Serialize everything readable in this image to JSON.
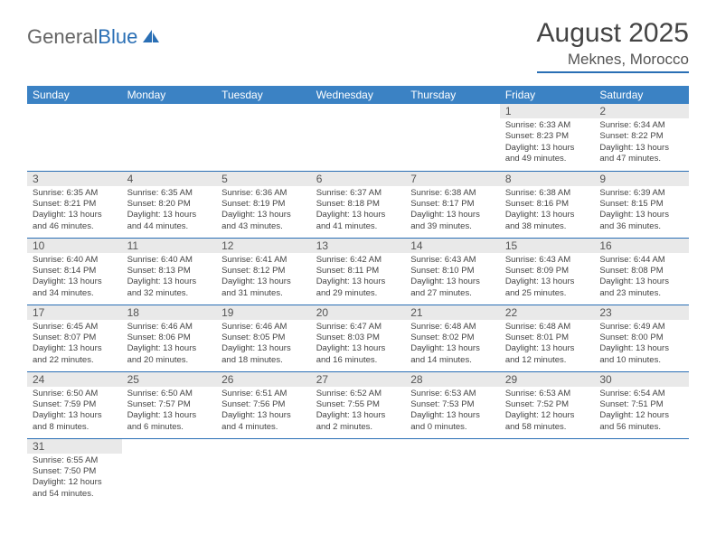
{
  "brand": {
    "part1": "General",
    "part2": "Blue"
  },
  "title": "August 2025",
  "location": "Meknes, Morocco",
  "colors": {
    "header_bg": "#3b82c4",
    "border": "#2a6fb5",
    "daynum_bg": "#e9e9e9",
    "text": "#444444"
  },
  "weekdays": [
    "Sunday",
    "Monday",
    "Tuesday",
    "Wednesday",
    "Thursday",
    "Friday",
    "Saturday"
  ],
  "weeks": [
    [
      null,
      null,
      null,
      null,
      null,
      {
        "n": "1",
        "sr": "6:33 AM",
        "ss": "8:23 PM",
        "dl": "13 hours and 49 minutes."
      },
      {
        "n": "2",
        "sr": "6:34 AM",
        "ss": "8:22 PM",
        "dl": "13 hours and 47 minutes."
      }
    ],
    [
      {
        "n": "3",
        "sr": "6:35 AM",
        "ss": "8:21 PM",
        "dl": "13 hours and 46 minutes."
      },
      {
        "n": "4",
        "sr": "6:35 AM",
        "ss": "8:20 PM",
        "dl": "13 hours and 44 minutes."
      },
      {
        "n": "5",
        "sr": "6:36 AM",
        "ss": "8:19 PM",
        "dl": "13 hours and 43 minutes."
      },
      {
        "n": "6",
        "sr": "6:37 AM",
        "ss": "8:18 PM",
        "dl": "13 hours and 41 minutes."
      },
      {
        "n": "7",
        "sr": "6:38 AM",
        "ss": "8:17 PM",
        "dl": "13 hours and 39 minutes."
      },
      {
        "n": "8",
        "sr": "6:38 AM",
        "ss": "8:16 PM",
        "dl": "13 hours and 38 minutes."
      },
      {
        "n": "9",
        "sr": "6:39 AM",
        "ss": "8:15 PM",
        "dl": "13 hours and 36 minutes."
      }
    ],
    [
      {
        "n": "10",
        "sr": "6:40 AM",
        "ss": "8:14 PM",
        "dl": "13 hours and 34 minutes."
      },
      {
        "n": "11",
        "sr": "6:40 AM",
        "ss": "8:13 PM",
        "dl": "13 hours and 32 minutes."
      },
      {
        "n": "12",
        "sr": "6:41 AM",
        "ss": "8:12 PM",
        "dl": "13 hours and 31 minutes."
      },
      {
        "n": "13",
        "sr": "6:42 AM",
        "ss": "8:11 PM",
        "dl": "13 hours and 29 minutes."
      },
      {
        "n": "14",
        "sr": "6:43 AM",
        "ss": "8:10 PM",
        "dl": "13 hours and 27 minutes."
      },
      {
        "n": "15",
        "sr": "6:43 AM",
        "ss": "8:09 PM",
        "dl": "13 hours and 25 minutes."
      },
      {
        "n": "16",
        "sr": "6:44 AM",
        "ss": "8:08 PM",
        "dl": "13 hours and 23 minutes."
      }
    ],
    [
      {
        "n": "17",
        "sr": "6:45 AM",
        "ss": "8:07 PM",
        "dl": "13 hours and 22 minutes."
      },
      {
        "n": "18",
        "sr": "6:46 AM",
        "ss": "8:06 PM",
        "dl": "13 hours and 20 minutes."
      },
      {
        "n": "19",
        "sr": "6:46 AM",
        "ss": "8:05 PM",
        "dl": "13 hours and 18 minutes."
      },
      {
        "n": "20",
        "sr": "6:47 AM",
        "ss": "8:03 PM",
        "dl": "13 hours and 16 minutes."
      },
      {
        "n": "21",
        "sr": "6:48 AM",
        "ss": "8:02 PM",
        "dl": "13 hours and 14 minutes."
      },
      {
        "n": "22",
        "sr": "6:48 AM",
        "ss": "8:01 PM",
        "dl": "13 hours and 12 minutes."
      },
      {
        "n": "23",
        "sr": "6:49 AM",
        "ss": "8:00 PM",
        "dl": "13 hours and 10 minutes."
      }
    ],
    [
      {
        "n": "24",
        "sr": "6:50 AM",
        "ss": "7:59 PM",
        "dl": "13 hours and 8 minutes."
      },
      {
        "n": "25",
        "sr": "6:50 AM",
        "ss": "7:57 PM",
        "dl": "13 hours and 6 minutes."
      },
      {
        "n": "26",
        "sr": "6:51 AM",
        "ss": "7:56 PM",
        "dl": "13 hours and 4 minutes."
      },
      {
        "n": "27",
        "sr": "6:52 AM",
        "ss": "7:55 PM",
        "dl": "13 hours and 2 minutes."
      },
      {
        "n": "28",
        "sr": "6:53 AM",
        "ss": "7:53 PM",
        "dl": "13 hours and 0 minutes."
      },
      {
        "n": "29",
        "sr": "6:53 AM",
        "ss": "7:52 PM",
        "dl": "12 hours and 58 minutes."
      },
      {
        "n": "30",
        "sr": "6:54 AM",
        "ss": "7:51 PM",
        "dl": "12 hours and 56 minutes."
      }
    ],
    [
      {
        "n": "31",
        "sr": "6:55 AM",
        "ss": "7:50 PM",
        "dl": "12 hours and 54 minutes."
      },
      null,
      null,
      null,
      null,
      null,
      null
    ]
  ],
  "labels": {
    "sunrise": "Sunrise:",
    "sunset": "Sunset:",
    "daylight": "Daylight:"
  }
}
